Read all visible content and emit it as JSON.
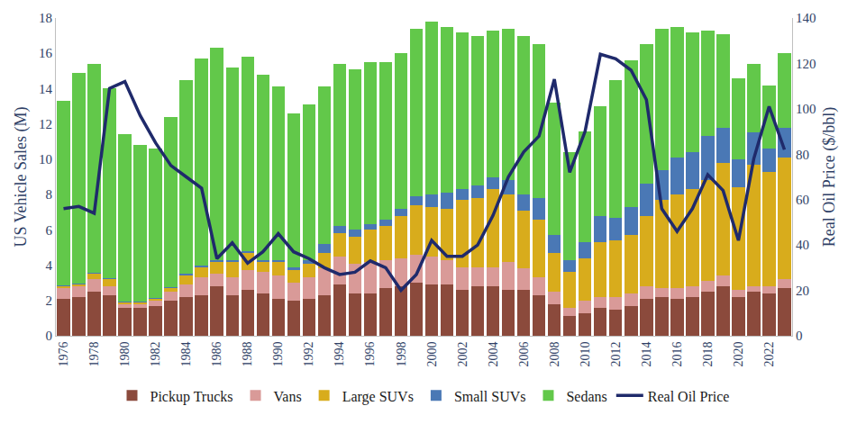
{
  "chart_data": {
    "type": "bar",
    "stacked": true,
    "grid": false,
    "legend": "bottom",
    "y_label": "US Vehicle Sales (M)",
    "y2_label": "Real Oil Price ($/bbl)",
    "ylim": [
      0,
      18
    ],
    "yticks": [
      0,
      2,
      4,
      6,
      8,
      10,
      12,
      14,
      16,
      18
    ],
    "y2lim": [
      0,
      140
    ],
    "y2ticks": [
      0,
      20,
      40,
      60,
      80,
      100,
      120,
      140
    ],
    "categories": [
      "1976",
      null,
      "1978",
      null,
      "1980",
      null,
      "1982",
      null,
      "1984",
      null,
      "1986",
      null,
      "1988",
      null,
      "1990",
      null,
      "1992",
      null,
      "1994",
      null,
      "1996",
      null,
      "1998",
      null,
      "2000",
      null,
      "2002",
      null,
      "2004",
      null,
      "2006",
      null,
      "2008",
      null,
      "2010",
      null,
      "2012",
      null,
      "2014",
      null,
      "2016",
      null,
      "2018",
      null,
      "2020",
      null,
      "2022",
      null
    ],
    "series": [
      {
        "name": "Pickup Trucks",
        "type": "bar",
        "color": "#8b4a3c",
        "values": [
          2.1,
          2.2,
          2.5,
          2.3,
          1.6,
          1.6,
          1.7,
          2.0,
          2.2,
          2.3,
          2.8,
          2.3,
          2.6,
          2.4,
          2.1,
          2.0,
          2.1,
          2.3,
          2.9,
          2.4,
          2.4,
          2.7,
          2.8,
          3.0,
          2.9,
          2.9,
          2.6,
          2.8,
          2.8,
          2.6,
          2.6,
          2.3,
          1.8,
          1.1,
          1.3,
          1.6,
          1.5,
          1.7,
          2.1,
          2.2,
          2.1,
          2.2,
          2.5,
          2.8,
          2.2,
          2.5,
          2.4,
          2.7
        ]
      },
      {
        "name": "Vans",
        "type": "bar",
        "color": "#d99a98",
        "values": [
          0.6,
          0.6,
          0.7,
          0.5,
          0.2,
          0.2,
          0.3,
          0.5,
          0.7,
          1.0,
          0.7,
          1.0,
          1.1,
          1.2,
          1.3,
          1.0,
          1.2,
          1.5,
          1.6,
          1.7,
          1.8,
          1.6,
          1.6,
          1.6,
          1.6,
          1.4,
          1.3,
          1.1,
          1.1,
          1.6,
          1.2,
          1.0,
          0.7,
          0.5,
          0.7,
          0.6,
          0.7,
          0.7,
          0.7,
          0.5,
          0.6,
          0.6,
          0.6,
          0.6,
          0.4,
          0.3,
          0.4,
          0.5
        ]
      },
      {
        "name": "Large SUVs",
        "type": "bar",
        "color": "#d8ac1c",
        "values": [
          0.1,
          0.1,
          0.3,
          0.4,
          0.1,
          0.1,
          0.1,
          0.2,
          0.5,
          0.6,
          0.7,
          0.9,
          1.0,
          0.6,
          0.8,
          0.7,
          0.8,
          0.9,
          1.3,
          1.5,
          1.8,
          1.9,
          2.4,
          2.8,
          2.8,
          2.9,
          3.8,
          3.9,
          4.4,
          3.8,
          3.3,
          3.3,
          2.2,
          2.0,
          2.4,
          3.1,
          3.2,
          3.3,
          4.0,
          5.0,
          5.3,
          5.5,
          5.7,
          6.4,
          5.8,
          6.9,
          6.5,
          6.9
        ]
      },
      {
        "name": "Small SUVs",
        "type": "bar",
        "color": "#4a78b5",
        "values": [
          0.05,
          0.05,
          0.05,
          0.05,
          0.05,
          0.05,
          0.05,
          0.05,
          0.1,
          0.1,
          0.1,
          0.1,
          0.1,
          0.1,
          0.1,
          0.2,
          0.2,
          0.5,
          0.4,
          0.4,
          0.3,
          0.4,
          0.4,
          0.5,
          0.7,
          0.9,
          0.6,
          0.7,
          0.7,
          0.8,
          0.9,
          1.2,
          1.0,
          0.7,
          0.9,
          1.5,
          1.3,
          1.6,
          1.8,
          1.7,
          2.1,
          2.1,
          2.5,
          2.0,
          1.6,
          1.8,
          1.3,
          1.7
        ]
      },
      {
        "name": "Sedans",
        "type": "bar",
        "color": "#62c84a",
        "values": [
          10.45,
          11.95,
          11.85,
          10.75,
          9.45,
          8.85,
          8.45,
          9.65,
          11.0,
          11.7,
          12.0,
          10.9,
          11.0,
          10.5,
          9.8,
          8.7,
          8.8,
          8.9,
          9.2,
          9.1,
          9.2,
          8.9,
          8.8,
          9.5,
          9.8,
          9.4,
          8.9,
          8.5,
          8.3,
          8.6,
          9.0,
          8.7,
          7.5,
          6.1,
          6.3,
          6.2,
          7.8,
          8.3,
          7.9,
          8.0,
          7.4,
          6.8,
          6.0,
          5.3,
          4.6,
          3.9,
          3.6,
          4.2
        ]
      },
      {
        "name": "Real Oil Price",
        "type": "line",
        "axis": "y2",
        "color": "#1f2a6b",
        "values": [
          56,
          57,
          54,
          109,
          112,
          97,
          85,
          75,
          70,
          65,
          34,
          41,
          32,
          37,
          45,
          37,
          34,
          30,
          27,
          28,
          33,
          30,
          20,
          27,
          42,
          35,
          35,
          40,
          53,
          70,
          81,
          88,
          113,
          72,
          90,
          124,
          122,
          117,
          104,
          56,
          46,
          56,
          71,
          64,
          42,
          78,
          101,
          82
        ]
      }
    ]
  }
}
